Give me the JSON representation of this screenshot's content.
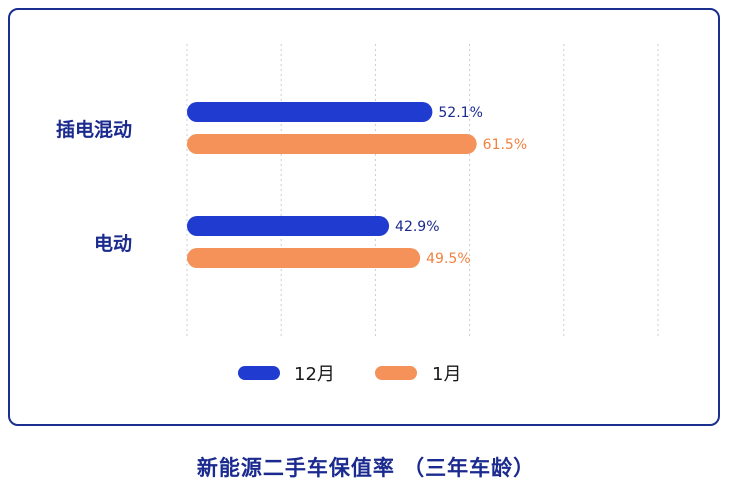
{
  "colors": {
    "series_dec": "#1f3bd0",
    "series_jan": "#f4925a",
    "label_dec": "#1b2a8f",
    "label_jan": "#f08240",
    "grid": "#c9ccd6",
    "frame": "#1b2f8f"
  },
  "caption": "新能源二手车保值率 （三年车龄）",
  "chart_data": {
    "type": "bar",
    "orientation": "horizontal",
    "categories": [
      "插电混动",
      "电动"
    ],
    "series": [
      {
        "name": "12月",
        "values": [
          52.1,
          42.9
        ],
        "labels": [
          "52.1%",
          "42.9%"
        ]
      },
      {
        "name": "1月",
        "values": [
          61.5,
          49.5
        ],
        "labels": [
          "61.5%",
          "49.5%"
        ]
      }
    ],
    "xlim": [
      0,
      100
    ],
    "grid": true,
    "legend_position": "bottom-center",
    "title": "新能源二手车保值率 （三年车龄）"
  }
}
